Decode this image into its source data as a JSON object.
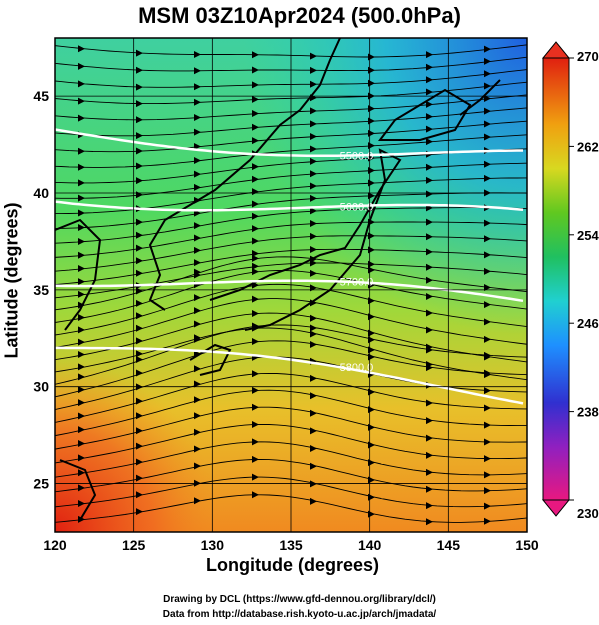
{
  "title": "MSM 03Z10Apr2024 (500.0hPa)",
  "x_axis": {
    "label": "Longitude (degrees)",
    "ticks": [
      120,
      125,
      130,
      135,
      140,
      145,
      150
    ]
  },
  "y_axis": {
    "label": "Latitude  (degrees)",
    "ticks": [
      25,
      30,
      35,
      40,
      45
    ]
  },
  "colorbar": {
    "ticks": [
      270,
      262,
      254,
      246,
      238,
      230
    ],
    "range": [
      230,
      270
    ],
    "colors": [
      "#e81880",
      "#9020c0",
      "#3030d0",
      "#1e90ff",
      "#20d0d0",
      "#20c060",
      "#40c020",
      "#a0d020",
      "#f0e020",
      "#f08010",
      "#e02010"
    ]
  },
  "contours": [
    {
      "label": "5500.0",
      "lat_at_140": 42.5
    },
    {
      "label": "5600.0",
      "lat_at_140": 39.3
    },
    {
      "label": "5700.0",
      "lat_at_140": 35.0
    },
    {
      "label": "5800.0",
      "lat_at_140": 30.8
    }
  ],
  "credits": [
    "Drawing by DCL (https://www.gfd-dennou.org/library/dcl/)",
    "Data from http://database.rish.kyoto-u.ac.jp/arch/jmadata/"
  ]
}
